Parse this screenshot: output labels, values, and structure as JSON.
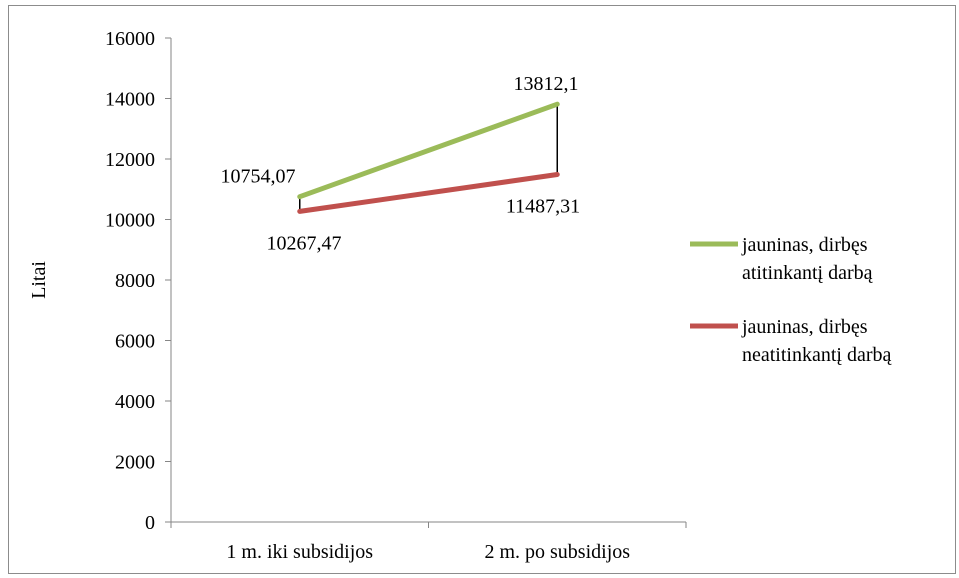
{
  "chart_data": {
    "type": "line",
    "categories": [
      "1 m. iki subsidijos",
      "2 m. po subsidijos"
    ],
    "ylabel": "Litai",
    "xlabel": "",
    "ylim": [
      0,
      16000
    ],
    "yticks": [
      "0",
      "2000",
      "4000",
      "6000",
      "8000",
      "10000",
      "12000",
      "14000",
      "16000"
    ],
    "grid": false,
    "legend_position": "right",
    "series": [
      {
        "name": "jauninas, dirbęs atitinkantį darbą",
        "name_lines": [
          "jauninas, dirbęs",
          "atitinkantį darbą"
        ],
        "values": [
          10754.07,
          13812.1
        ],
        "labels": [
          "10754,07",
          "13812,1"
        ],
        "color": "#9bbb59"
      },
      {
        "name": "jauninas, dirbęs neatitinkantį darbą",
        "name_lines": [
          "jauninas, dirbęs",
          "neatitinkantį darbą"
        ],
        "values": [
          10267.47,
          11487.31
        ],
        "labels": [
          "10267,47",
          "11487,31"
        ],
        "color": "#c0504d"
      }
    ]
  }
}
